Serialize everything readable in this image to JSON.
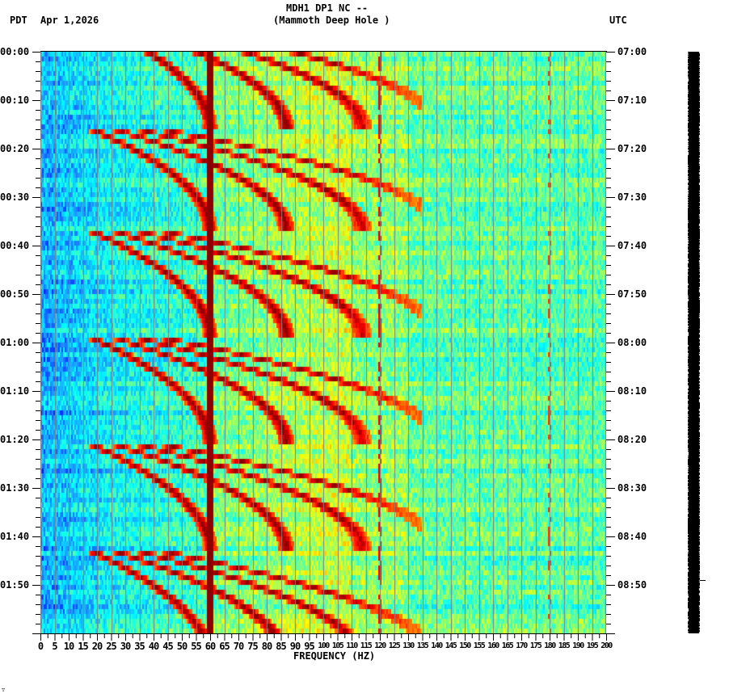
{
  "header": {
    "station_line": "MDH1 DP1 NC --",
    "station_name": "(Mammoth Deep Hole )",
    "left_timezone": "PDT",
    "date": "Apr 1,2026",
    "right_timezone": "UTC"
  },
  "footer": {
    "corner_mark": "∵"
  },
  "chart_data": {
    "type": "heatmap",
    "title": "MDH1 DP1 NC -- (Mammoth Deep Hole )",
    "subtitle": "Apr 1,2026",
    "xlabel": "FREQUENCY (HZ)",
    "ylabel_left": "PDT",
    "ylabel_right": "UTC",
    "xlim": [
      0,
      200
    ],
    "x_ticks": [
      "0",
      "5",
      "10",
      "15",
      "20",
      "25",
      "30",
      "35",
      "40",
      "45",
      "50",
      "55",
      "60",
      "65",
      "70",
      "75",
      "80",
      "85",
      "90",
      "95",
      "100",
      "105",
      "110",
      "115",
      "120",
      "125",
      "130",
      "135",
      "140",
      "145",
      "150",
      "155",
      "160",
      "165",
      "170",
      "175",
      "180",
      "185",
      "190",
      "195",
      "200"
    ],
    "y_ticks_left": [
      "00:00",
      "00:10",
      "00:20",
      "00:30",
      "00:40",
      "00:50",
      "01:00",
      "01:10",
      "01:20",
      "01:30",
      "01:40",
      "01:50"
    ],
    "y_ticks_right": [
      "07:00",
      "07:10",
      "07:20",
      "07:30",
      "07:40",
      "07:50",
      "08:00",
      "08:10",
      "08:20",
      "08:30",
      "08:40",
      "08:50"
    ],
    "time_span_minutes": 120,
    "grid": {
      "vertical_every_hz": 5,
      "color": "#7f7f7f"
    },
    "persistent_lines_hz": [
      60,
      120,
      180
    ],
    "colormap": [
      "#0000ff",
      "#1e90ff",
      "#00ffff",
      "#7fff7f",
      "#ffff00",
      "#ff8000",
      "#ff0000",
      "#8b0000"
    ],
    "annotations": [
      "Strong continuous 60 Hz power-line band",
      "Repeating gliding harmonic arcs (~22 min period) from ~20 Hz rising to 60-130 Hz"
    ],
    "glide_events": [
      {
        "start_min": -6,
        "end_min": 16
      },
      {
        "start_min": 16,
        "end_min": 37
      },
      {
        "start_min": 37,
        "end_min": 59
      },
      {
        "start_min": 59,
        "end_min": 81
      },
      {
        "start_min": 81,
        "end_min": 103
      },
      {
        "start_min": 103,
        "end_min": 126
      }
    ]
  }
}
